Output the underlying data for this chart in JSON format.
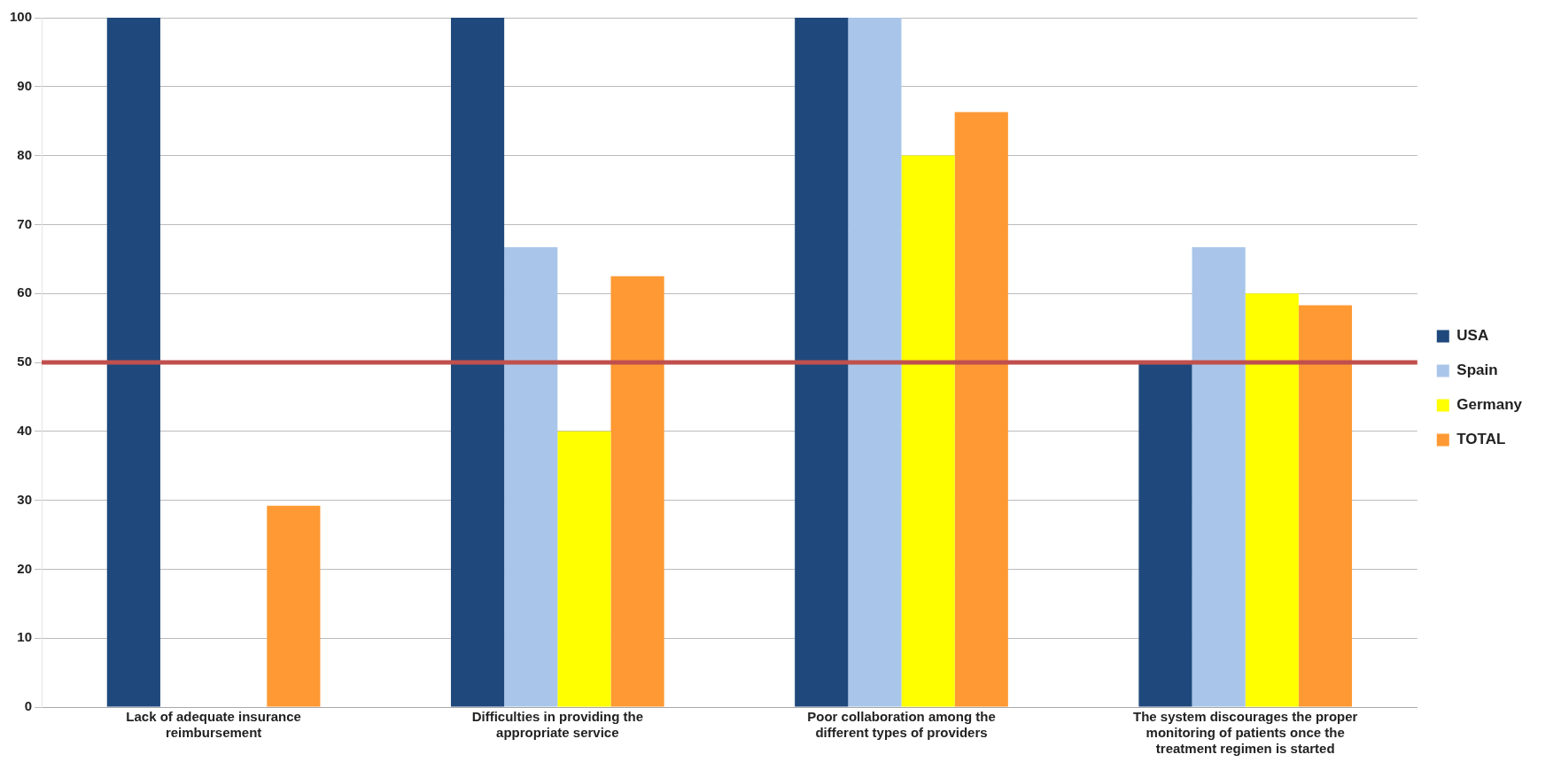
{
  "chart_data": {
    "type": "bar",
    "categories": [
      "Lack of adequate insurance reimbursement",
      "Difficulties in providing the appropriate service",
      "Poor collaboration among the different types of providers",
      "The system discourages the proper monitoring of patients once the treatment regimen is started"
    ],
    "series": [
      {
        "name": "USA",
        "color": "#1f497d",
        "values": [
          100,
          100,
          100,
          50
        ]
      },
      {
        "name": "Spain",
        "color": "#a9c6ea",
        "values": [
          0,
          66.7,
          100,
          66.7
        ]
      },
      {
        "name": "Germany",
        "color": "#ffff00",
        "values": [
          0,
          40,
          80,
          60
        ]
      },
      {
        "name": "TOTAL",
        "color": "#ff9933",
        "values": [
          29.2,
          62.5,
          86.3,
          58.3
        ]
      }
    ],
    "ylim": [
      0,
      100
    ],
    "yticks": [
      0,
      10,
      20,
      30,
      40,
      50,
      60,
      70,
      80,
      90,
      100
    ],
    "grid": "y",
    "legend": "right",
    "ref_lines": [
      {
        "axis": "y",
        "value": 50,
        "color": "#c0504d"
      }
    ]
  }
}
